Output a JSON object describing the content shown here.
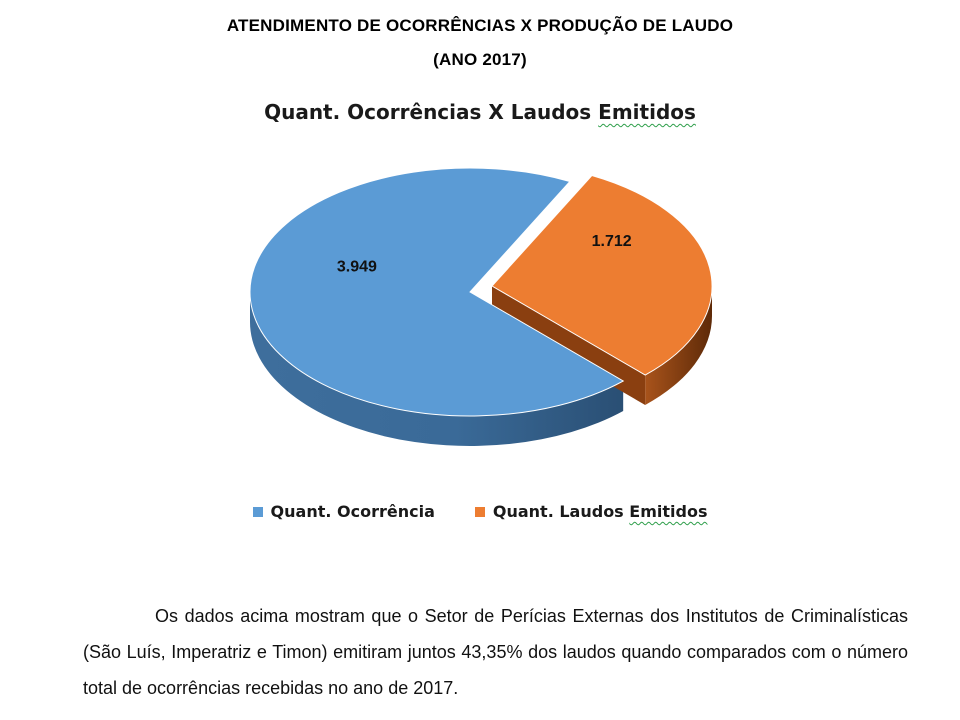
{
  "document": {
    "title_line1": "ATENDIMENTO DE OCORRÊNCIAS X PRODUÇÃO DE LAUDO",
    "title_line2": "(ANO 2017)"
  },
  "chart_data": {
    "type": "pie",
    "style": "3d",
    "title_part1": "Quant. Ocorrências X Laudos ",
    "title_part2": "Emitidos",
    "categories": [
      "Quant. Ocorrência",
      "Quant. Laudos Emitidos"
    ],
    "values": [
      3949,
      1712
    ],
    "data_labels": [
      "3.949",
      "1.712"
    ],
    "colors": [
      "#5b9bd5",
      "#ed7d31"
    ],
    "legend_position": "bottom",
    "legend": {
      "item1": "Quant. Ocorrência",
      "item2_part1": "Quant.  Laudos ",
      "item2_part2": "Emitidos"
    }
  },
  "paragraph": {
    "text": "Os dados acima mostram que o Setor de Perícias Externas dos Institutos de Criminalísticas (São Luís, Imperatriz e Timon) emitiram juntos 43,35% dos laudos quando comparados  com o número total de ocorrências recebidas no ano de 2017."
  }
}
